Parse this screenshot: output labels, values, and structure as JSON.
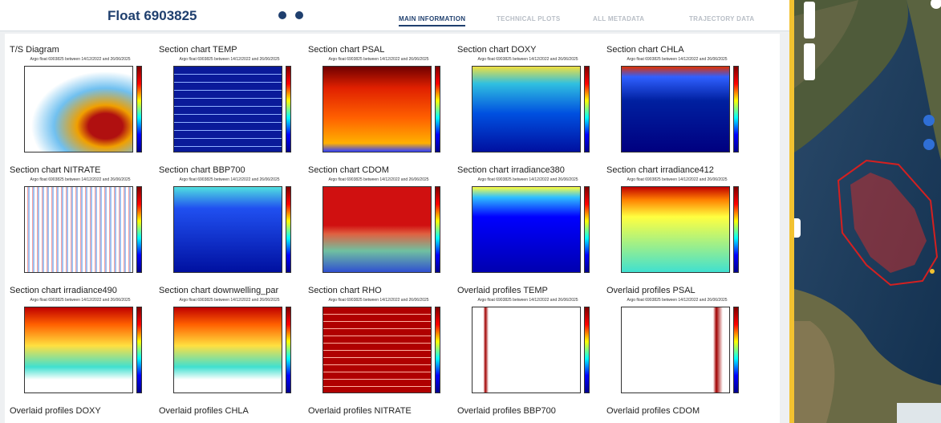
{
  "header": {
    "title": "Float 6903825",
    "tabs": [
      "MAIN INFORMATION",
      "TECHNICAL PLOTS",
      "ALL METADATA",
      "TRAJECTORY DATA"
    ]
  },
  "panels": [
    {
      "title": "T/S Diagram",
      "subtitle": "Argo float 6903825 between 14/12/2022 and 26/06/2025"
    },
    {
      "title": "Section chart TEMP",
      "subtitle": "Argo float 6903825 between 14/12/2022 and 26/06/2025"
    },
    {
      "title": "Section chart PSAL",
      "subtitle": "Argo float 6903825 between 14/12/2022 and 26/06/2025"
    },
    {
      "title": "Section chart DOXY",
      "subtitle": "Argo float 6903825 between 14/12/2022 and 26/06/2025"
    },
    {
      "title": "Section chart CHLA",
      "subtitle": "Argo float 6903825 between 14/12/2022 and 26/06/2025"
    },
    {
      "title": "Section chart NITRATE",
      "subtitle": "Argo float 6903825 between 14/12/2022 and 26/06/2025"
    },
    {
      "title": "Section chart BBP700",
      "subtitle": "Argo float 6903825 between 14/12/2022 and 26/06/2025"
    },
    {
      "title": "Section chart CDOM",
      "subtitle": "Argo float 6903825 between 14/12/2022 and 26/06/2025"
    },
    {
      "title": "Section chart irradiance380",
      "subtitle": "Argo float 6903825 between 14/12/2022 and 26/06/2025"
    },
    {
      "title": "Section chart irradiance412",
      "subtitle": "Argo float 6903825 between 14/12/2022 and 26/06/2025"
    },
    {
      "title": "Section chart irradiance490",
      "subtitle": "Argo float 6903825 between 14/12/2022 and 26/06/2025"
    },
    {
      "title": "Section chart downwelling_par",
      "subtitle": "Argo float 6903825 between 14/12/2022 and 26/06/2025"
    },
    {
      "title": "Section chart RHO",
      "subtitle": "Argo float 6903825 between 14/12/2022 and 26/06/2025"
    },
    {
      "title": "Overlaid profiles TEMP",
      "subtitle": "Argo float 6903825 between 14/12/2022 and 26/06/2025"
    },
    {
      "title": "Overlaid profiles PSAL",
      "subtitle": "Argo float 6903825 between 14/12/2022 and 26/06/2025"
    },
    {
      "title": "Overlaid profiles DOXY"
    },
    {
      "title": "Overlaid profiles CHLA"
    },
    {
      "title": "Overlaid profiles NITRATE"
    },
    {
      "title": "Overlaid profiles BBP700"
    },
    {
      "title": "Overlaid profiles CDOM"
    }
  ]
}
